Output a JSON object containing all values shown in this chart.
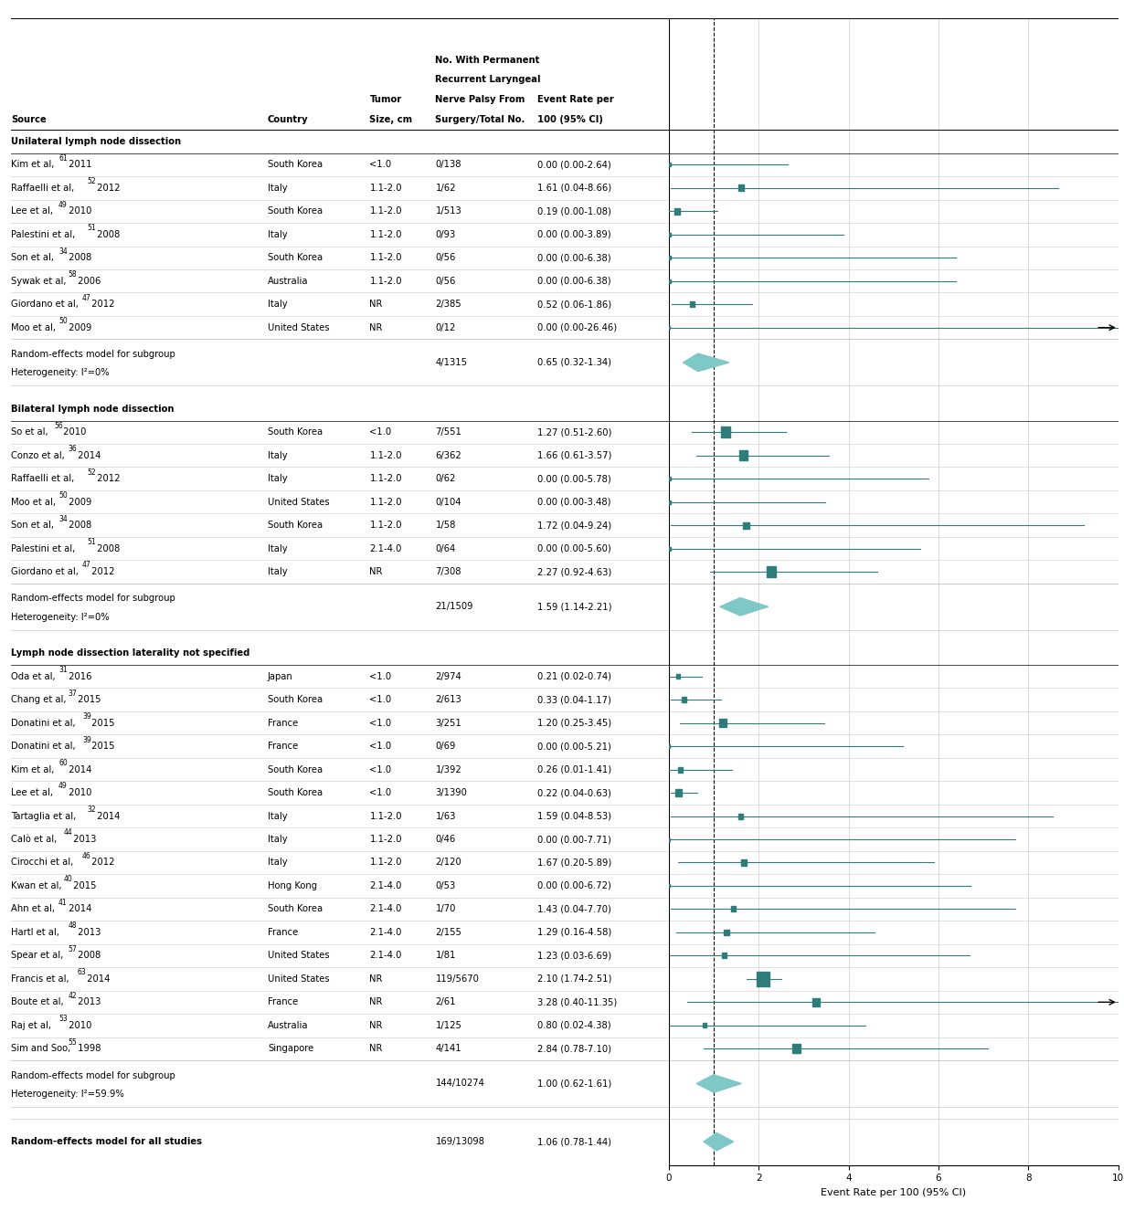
{
  "xlabel": "Event Rate per 100 (95% CI)",
  "xlim": [
    0,
    10
  ],
  "xticks": [
    0,
    2,
    4,
    6,
    8,
    10
  ],
  "dashed_line_x": 1.0,
  "square_color": "#2e7d7b",
  "diamond_color": "#7ec8c8",
  "groups": [
    {
      "label": "Unilateral lymph node dissection",
      "studies": [
        {
          "source": "Kim et al,",
          "super": "61",
          "year": " 2011",
          "country": "South Korea",
          "tumor_size": "<1.0",
          "fraction": "0/138",
          "event_rate_text": "0.00 (0.00-2.64)",
          "mean": 0.0,
          "ci_lo": 0.0,
          "ci_hi": 2.64,
          "weight": 1.2
        },
        {
          "source": "Raffaelli et al,",
          "super": "52",
          "year": " 2012",
          "country": "Italy",
          "tumor_size": "1.1-2.0",
          "fraction": "1/62",
          "event_rate_text": "1.61 (0.04-8.66)",
          "mean": 1.61,
          "ci_lo": 0.04,
          "ci_hi": 8.66,
          "weight": 2.2
        },
        {
          "source": "Lee et al,",
          "super": "49",
          "year": " 2010",
          "country": "South Korea",
          "tumor_size": "1.1-2.0",
          "fraction": "1/513",
          "event_rate_text": "0.19 (0.00-1.08)",
          "mean": 0.19,
          "ci_lo": 0.0,
          "ci_hi": 1.08,
          "weight": 2.0
        },
        {
          "source": "Palestini et al,",
          "super": "51",
          "year": " 2008",
          "country": "Italy",
          "tumor_size": "1.1-2.0",
          "fraction": "0/93",
          "event_rate_text": "0.00 (0.00-3.89)",
          "mean": 0.0,
          "ci_lo": 0.0,
          "ci_hi": 3.89,
          "weight": 1.2
        },
        {
          "source": "Son et al,",
          "super": "34",
          "year": " 2008",
          "country": "South Korea",
          "tumor_size": "1.1-2.0",
          "fraction": "0/56",
          "event_rate_text": "0.00 (0.00-6.38)",
          "mean": 0.0,
          "ci_lo": 0.0,
          "ci_hi": 6.38,
          "weight": 1.2
        },
        {
          "source": "Sywak et al,",
          "super": "58",
          "year": " 2006",
          "country": "Australia",
          "tumor_size": "1.1-2.0",
          "fraction": "0/56",
          "event_rate_text": "0.00 (0.00-6.38)",
          "mean": 0.0,
          "ci_lo": 0.0,
          "ci_hi": 6.38,
          "weight": 1.2
        },
        {
          "source": "Giordano et al,",
          "super": "47",
          "year": " 2012",
          "country": "Italy",
          "tumor_size": "NR",
          "fraction": "2/385",
          "event_rate_text": "0.52 (0.06-1.86)",
          "mean": 0.52,
          "ci_lo": 0.06,
          "ci_hi": 1.86,
          "weight": 2.0
        },
        {
          "source": "Moo et al,",
          "super": "50",
          "year": " 2009",
          "country": "United States",
          "tumor_size": "NR",
          "fraction": "0/12",
          "event_rate_text": "0.00 (0.00-26.46)",
          "mean": 0.0,
          "ci_lo": 0.0,
          "ci_hi": 26.46,
          "weight": 0.8
        }
      ],
      "pooled": {
        "fraction": "4/1315",
        "event_rate_text": "0.65 (0.32-1.34)",
        "mean": 0.65,
        "ci_lo": 0.32,
        "ci_hi": 1.34,
        "line1": "Random-effects model for subgroup",
        "line2": "Heterogeneity: I²=0%"
      }
    },
    {
      "label": "Bilateral lymph node dissection",
      "studies": [
        {
          "source": "So et al,",
          "super": "56",
          "year": " 2010",
          "country": "South Korea",
          "tumor_size": "<1.0",
          "fraction": "7/551",
          "event_rate_text": "1.27 (0.51-2.60)",
          "mean": 1.27,
          "ci_lo": 0.51,
          "ci_hi": 2.6,
          "weight": 3.5
        },
        {
          "source": "Conzo et al,",
          "super": "36",
          "year": " 2014",
          "country": "Italy",
          "tumor_size": "1.1-2.0",
          "fraction": "6/362",
          "event_rate_text": "1.66 (0.61-3.57)",
          "mean": 1.66,
          "ci_lo": 0.61,
          "ci_hi": 3.57,
          "weight": 3.2
        },
        {
          "source": "Raffaelli et al,",
          "super": "52",
          "year": " 2012",
          "country": "Italy",
          "tumor_size": "1.1-2.0",
          "fraction": "0/62",
          "event_rate_text": "0.00 (0.00-5.78)",
          "mean": 0.0,
          "ci_lo": 0.0,
          "ci_hi": 5.78,
          "weight": 1.2
        },
        {
          "source": "Moo et al,",
          "super": "50",
          "year": " 2009",
          "country": "United States",
          "tumor_size": "1.1-2.0",
          "fraction": "0/104",
          "event_rate_text": "0.00 (0.00-3.48)",
          "mean": 0.0,
          "ci_lo": 0.0,
          "ci_hi": 3.48,
          "weight": 1.2
        },
        {
          "source": "Son et al,",
          "super": "34",
          "year": " 2008",
          "country": "South Korea",
          "tumor_size": "1.1-2.0",
          "fraction": "1/58",
          "event_rate_text": "1.72 (0.04-9.24)",
          "mean": 1.72,
          "ci_lo": 0.04,
          "ci_hi": 9.24,
          "weight": 2.2
        },
        {
          "source": "Palestini et al,",
          "super": "51",
          "year": " 2008",
          "country": "Italy",
          "tumor_size": "2.1-4.0",
          "fraction": "0/64",
          "event_rate_text": "0.00 (0.00-5.60)",
          "mean": 0.0,
          "ci_lo": 0.0,
          "ci_hi": 5.6,
          "weight": 1.2
        },
        {
          "source": "Giordano et al,",
          "super": "47",
          "year": " 2012",
          "country": "Italy",
          "tumor_size": "NR",
          "fraction": "7/308",
          "event_rate_text": "2.27 (0.92-4.63)",
          "mean": 2.27,
          "ci_lo": 0.92,
          "ci_hi": 4.63,
          "weight": 3.5
        }
      ],
      "pooled": {
        "fraction": "21/1509",
        "event_rate_text": "1.59 (1.14-2.21)",
        "mean": 1.59,
        "ci_lo": 1.14,
        "ci_hi": 2.21,
        "line1": "Random-effects model for subgroup",
        "line2": "Heterogeneity: I²=0%"
      }
    },
    {
      "label": "Lymph node dissection laterality not specified",
      "studies": [
        {
          "source": "Oda et al,",
          "super": "31",
          "year": " 2016",
          "country": "Japan",
          "tumor_size": "<1.0",
          "fraction": "2/974",
          "event_rate_text": "0.21 (0.02-0.74)",
          "mean": 0.21,
          "ci_lo": 0.02,
          "ci_hi": 0.74,
          "weight": 1.5
        },
        {
          "source": "Chang et al,",
          "super": "37",
          "year": " 2015",
          "country": "South Korea",
          "tumor_size": "<1.0",
          "fraction": "2/613",
          "event_rate_text": "0.33 (0.04-1.17)",
          "mean": 0.33,
          "ci_lo": 0.04,
          "ci_hi": 1.17,
          "weight": 1.8
        },
        {
          "source": "Donatini et al,",
          "super": "39",
          "year": " 2015",
          "country": "France",
          "tumor_size": "<1.0",
          "fraction": "3/251",
          "event_rate_text": "1.20 (0.25-3.45)",
          "mean": 1.2,
          "ci_lo": 0.25,
          "ci_hi": 3.45,
          "weight": 2.8
        },
        {
          "source": "Donatini et al,",
          "super": "39",
          "year": " 2015",
          "country": "France",
          "tumor_size": "<1.0",
          "fraction": "0/69",
          "event_rate_text": "0.00 (0.00-5.21)",
          "mean": 0.0,
          "ci_lo": 0.0,
          "ci_hi": 5.21,
          "weight": 1.0
        },
        {
          "source": "Kim et al,",
          "super": "60",
          "year": " 2014",
          "country": "South Korea",
          "tumor_size": "<1.0",
          "fraction": "1/392",
          "event_rate_text": "0.26 (0.01-1.41)",
          "mean": 0.26,
          "ci_lo": 0.01,
          "ci_hi": 1.41,
          "weight": 1.8
        },
        {
          "source": "Lee et al,",
          "super": "49",
          "year": " 2010",
          "country": "South Korea",
          "tumor_size": "<1.0",
          "fraction": "3/1390",
          "event_rate_text": "0.22 (0.04-0.63)",
          "mean": 0.22,
          "ci_lo": 0.04,
          "ci_hi": 0.63,
          "weight": 2.5
        },
        {
          "source": "Tartaglia et al,",
          "super": "32",
          "year": " 2014",
          "country": "Italy",
          "tumor_size": "1.1-2.0",
          "fraction": "1/63",
          "event_rate_text": "1.59 (0.04-8.53)",
          "mean": 1.59,
          "ci_lo": 0.04,
          "ci_hi": 8.53,
          "weight": 1.8
        },
        {
          "source": "Calò et al,",
          "super": "44",
          "year": " 2013",
          "country": "Italy",
          "tumor_size": "1.1-2.0",
          "fraction": "0/46",
          "event_rate_text": "0.00 (0.00-7.71)",
          "mean": 0.0,
          "ci_lo": 0.0,
          "ci_hi": 7.71,
          "weight": 0.9
        },
        {
          "source": "Cirocchi et al,",
          "super": "46",
          "year": " 2012",
          "country": "Italy",
          "tumor_size": "1.1-2.0",
          "fraction": "2/120",
          "event_rate_text": "1.67 (0.20-5.89)",
          "mean": 1.67,
          "ci_lo": 0.2,
          "ci_hi": 5.89,
          "weight": 2.0
        },
        {
          "source": "Kwan et al,",
          "super": "40",
          "year": " 2015",
          "country": "Hong Kong",
          "tumor_size": "2.1-4.0",
          "fraction": "0/53",
          "event_rate_text": "0.00 (0.00-6.72)",
          "mean": 0.0,
          "ci_lo": 0.0,
          "ci_hi": 6.72,
          "weight": 0.9
        },
        {
          "source": "Ahn et al,",
          "super": "41",
          "year": " 2014",
          "country": "South Korea",
          "tumor_size": "2.1-4.0",
          "fraction": "1/70",
          "event_rate_text": "1.43 (0.04-7.70)",
          "mean": 1.43,
          "ci_lo": 0.04,
          "ci_hi": 7.7,
          "weight": 1.8
        },
        {
          "source": "Hartl et al,",
          "super": "48",
          "year": " 2013",
          "country": "France",
          "tumor_size": "2.1-4.0",
          "fraction": "2/155",
          "event_rate_text": "1.29 (0.16-4.58)",
          "mean": 1.29,
          "ci_lo": 0.16,
          "ci_hi": 4.58,
          "weight": 2.0
        },
        {
          "source": "Spear et al,",
          "super": "57",
          "year": " 2008",
          "country": "United States",
          "tumor_size": "2.1-4.0",
          "fraction": "1/81",
          "event_rate_text": "1.23 (0.03-6.69)",
          "mean": 1.23,
          "ci_lo": 0.03,
          "ci_hi": 6.69,
          "weight": 1.8
        },
        {
          "source": "Francis et al,",
          "super": "63",
          "year": " 2014",
          "country": "United States",
          "tumor_size": "NR",
          "fraction": "119/5670",
          "event_rate_text": "2.10 (1.74-2.51)",
          "mean": 2.1,
          "ci_lo": 1.74,
          "ci_hi": 2.51,
          "weight": 5.0
        },
        {
          "source": "Boute et al,",
          "super": "42",
          "year": " 2013",
          "country": "France",
          "tumor_size": "NR",
          "fraction": "2/61",
          "event_rate_text": "3.28 (0.40-11.35)",
          "mean": 3.28,
          "ci_lo": 0.4,
          "ci_hi": 11.35,
          "weight": 2.8
        },
        {
          "source": "Raj et al,",
          "super": "53",
          "year": " 2010",
          "country": "Australia",
          "tumor_size": "NR",
          "fraction": "1/125",
          "event_rate_text": "0.80 (0.02-4.38)",
          "mean": 0.8,
          "ci_lo": 0.02,
          "ci_hi": 4.38,
          "weight": 1.5
        },
        {
          "source": "Sim and Soo,",
          "super": "55",
          "year": " 1998",
          "country": "Singapore",
          "tumor_size": "NR",
          "fraction": "4/141",
          "event_rate_text": "2.84 (0.78-7.10)",
          "mean": 2.84,
          "ci_lo": 0.78,
          "ci_hi": 7.1,
          "weight": 3.0
        }
      ],
      "pooled": {
        "fraction": "144/10274",
        "event_rate_text": "1.00 (0.62-1.61)",
        "mean": 1.0,
        "ci_lo": 0.62,
        "ci_hi": 1.61,
        "line1": "Random-effects model for subgroup",
        "line2": "Heterogeneity: I²=59.9%"
      }
    }
  ],
  "overall": {
    "fraction": "169/13098",
    "event_rate_text": "1.06 (0.78-1.44)",
    "mean": 1.06,
    "ci_lo": 0.78,
    "ci_hi": 1.44,
    "line1": "Random-effects model for all studies",
    "line2": ""
  }
}
